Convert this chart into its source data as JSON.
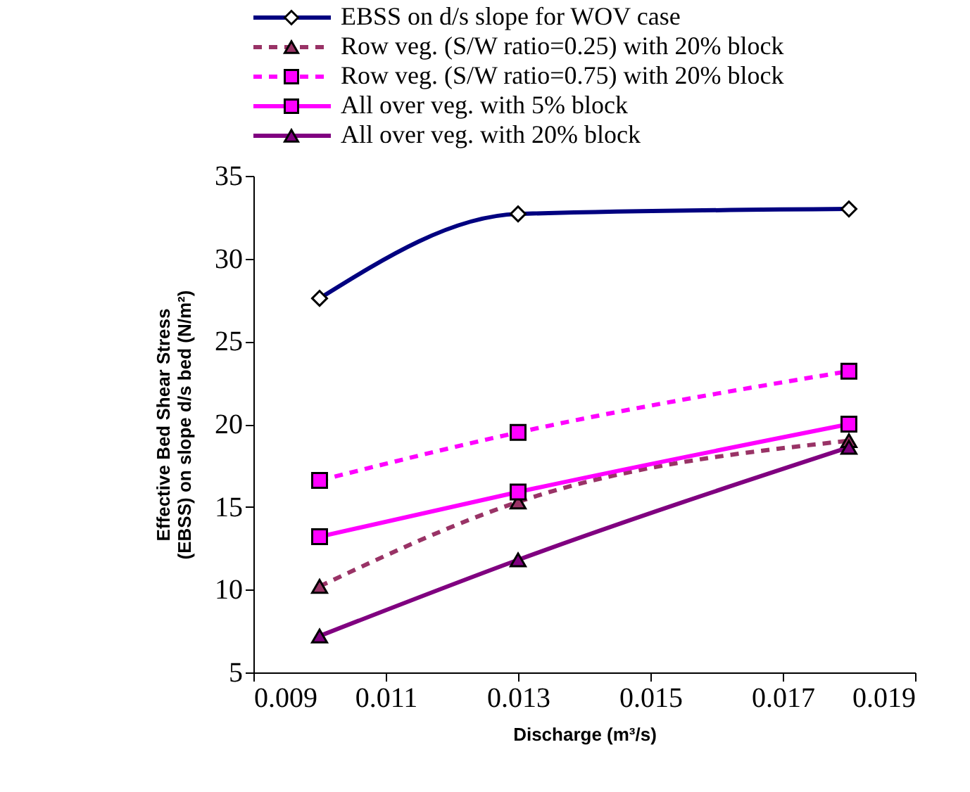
{
  "chart_data": {
    "type": "line",
    "xlabel": "Discharge (m³/s)",
    "ylabel": "Effective Bed Shear Stress\n(EBSS) on slope d/s bed (N/m²)",
    "x": [
      0.01,
      0.013,
      0.018
    ],
    "xlim": [
      0.009,
      0.019
    ],
    "xticks": [
      0.009,
      0.011,
      0.013,
      0.015,
      0.017,
      0.019
    ],
    "ylim": [
      5,
      35
    ],
    "yticks": [
      5,
      10,
      15,
      20,
      25,
      30,
      35
    ],
    "grid": false,
    "legend": "top",
    "series": [
      {
        "name": "EBSS on d/s slope for WOV case",
        "color": "#000080",
        "marker": "diamond",
        "line_style": "solid",
        "values": [
          27.6,
          32.7,
          33.0
        ]
      },
      {
        "name": "Row veg. (S/W ratio=0.25) with 20% block",
        "color": "#993366",
        "marker": "triangle",
        "line_style": "dashed",
        "values": [
          10.2,
          15.3,
          19.0
        ]
      },
      {
        "name": "Row veg. (S/W ratio=0.75) with 20% block",
        "color": "#ff00ff",
        "marker": "square",
        "line_style": "dashed",
        "values": [
          16.6,
          19.5,
          23.2
        ]
      },
      {
        "name": "All over veg. with 5% block",
        "color": "#ff00ff",
        "marker": "square",
        "line_style": "solid",
        "values": [
          13.2,
          15.9,
          20.0
        ]
      },
      {
        "name": "All over veg. with 20% block",
        "color": "#800080",
        "marker": "triangle",
        "line_style": "solid",
        "values": [
          7.2,
          11.8,
          18.6
        ]
      }
    ]
  }
}
